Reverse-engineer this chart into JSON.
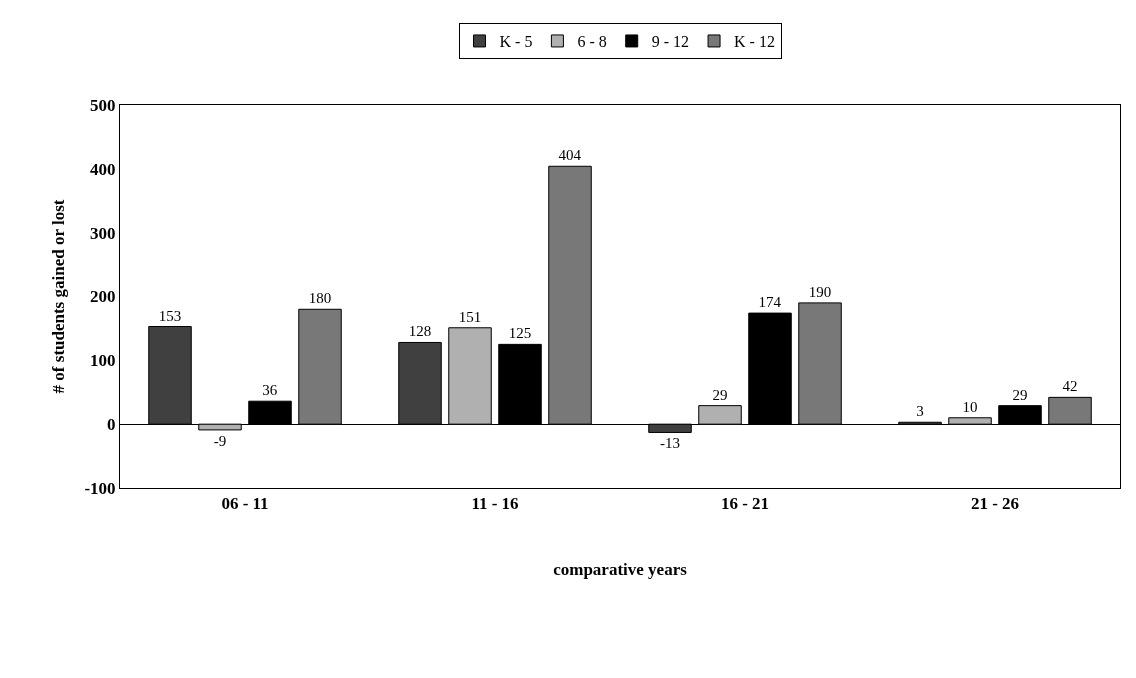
{
  "chart_data": {
    "type": "bar",
    "xlabel": "comparative years",
    "ylabel": "# of students gained or lost",
    "categories": [
      "06 - 11",
      "11 - 16",
      "16 - 21",
      "21 - 26"
    ],
    "series": [
      {
        "name": "K - 5",
        "color": "#404040",
        "values": [
          153,
          128,
          -13,
          3
        ]
      },
      {
        "name": "6 - 8",
        "color": "#b0b0b0",
        "values": [
          -9,
          151,
          29,
          10
        ]
      },
      {
        "name": "9 - 12",
        "color": "#000000",
        "values": [
          36,
          125,
          174,
          29
        ]
      },
      {
        "name": "K - 12",
        "color": "#787878",
        "values": [
          180,
          404,
          190,
          42
        ]
      }
    ],
    "ylim": [
      -100,
      500
    ],
    "yticks": [
      -100,
      0,
      100,
      200,
      300,
      400,
      500
    ],
    "legend": "top",
    "data_labels": true
  }
}
